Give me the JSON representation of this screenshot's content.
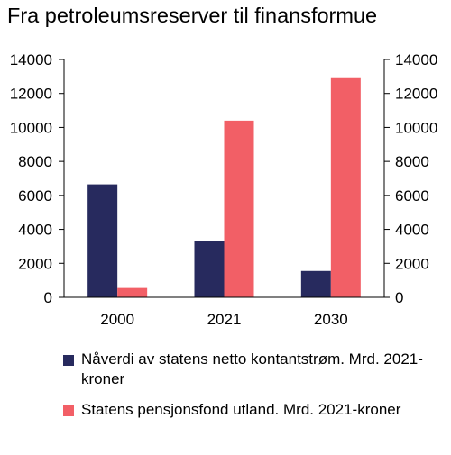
{
  "chart_data": {
    "type": "bar",
    "title": "Fra petroleumsreserver til finansformue",
    "categories": [
      "2000",
      "2021",
      "2030"
    ],
    "series": [
      {
        "name": "Nåverdi av statens netto kontantstrøm. Mrd. 2021-kroner",
        "values": [
          6650,
          3300,
          1550
        ],
        "color": "#272a5e"
      },
      {
        "name": "Statens pensjonsfond utland. Mrd. 2021-kroner",
        "values": [
          550,
          10400,
          12900
        ],
        "color": "#f25f66"
      }
    ],
    "ylim": [
      0,
      14000
    ],
    "yticks": [
      "0",
      "2000",
      "4000",
      "6000",
      "8000",
      "10000",
      "12000",
      "14000"
    ],
    "ytick_values": [
      0,
      2000,
      4000,
      6000,
      8000,
      10000,
      12000,
      14000
    ],
    "secondary_axis": true,
    "grid": false,
    "legend_position": "bottom",
    "xlabel": "",
    "ylabel": ""
  }
}
